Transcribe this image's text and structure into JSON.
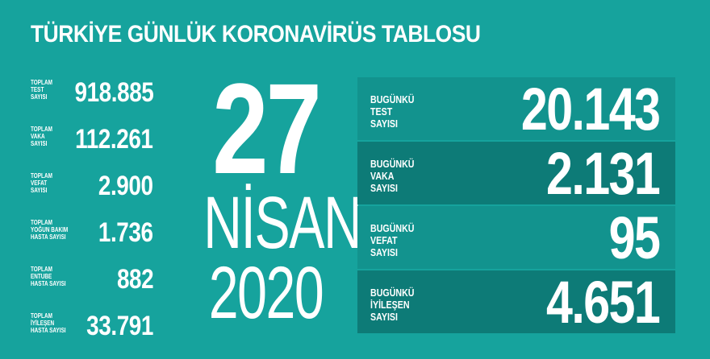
{
  "title": "TÜRKİYE GÜNLÜK KORONAVİRÜS TABLOSU",
  "totals": [
    {
      "label": "TOPLAM\nTEST\nSAYISI",
      "value": "918.885"
    },
    {
      "label": "TOPLAM\nVAKA\nSAYISI",
      "value": "112.261"
    },
    {
      "label": "TOPLAM\nVEFAT\nSAYISI",
      "value": "2.900"
    },
    {
      "label": "TOPLAM\nYOĞUN BAKIM\nHASTA SAYISI",
      "value": "1.736"
    },
    {
      "label": "TOPLAM\nENTUBE\nHASTA SAYISI",
      "value": "882"
    },
    {
      "label": "TOPLAM\nİYİLEŞEN\nHASTA SAYISI",
      "value": "33.791"
    }
  ],
  "date": {
    "day": "27",
    "month": "NİSAN",
    "year": "2020"
  },
  "today": [
    {
      "label": "BUGÜNKÜ\nTEST\nSAYISI",
      "value": "20.143"
    },
    {
      "label": "BUGÜNKÜ\nVAKA\nSAYISI",
      "value": "2.131"
    },
    {
      "label": "BUGÜNKÜ\nVEFAT\nSAYISI",
      "value": "95"
    },
    {
      "label": "BUGÜNKÜ\nİYİLEŞEN\nSAYISI",
      "value": "4.651"
    }
  ],
  "colors": {
    "background": "#16a39d",
    "panel_light": "#12938e",
    "panel_dark": "#0d7b77"
  }
}
